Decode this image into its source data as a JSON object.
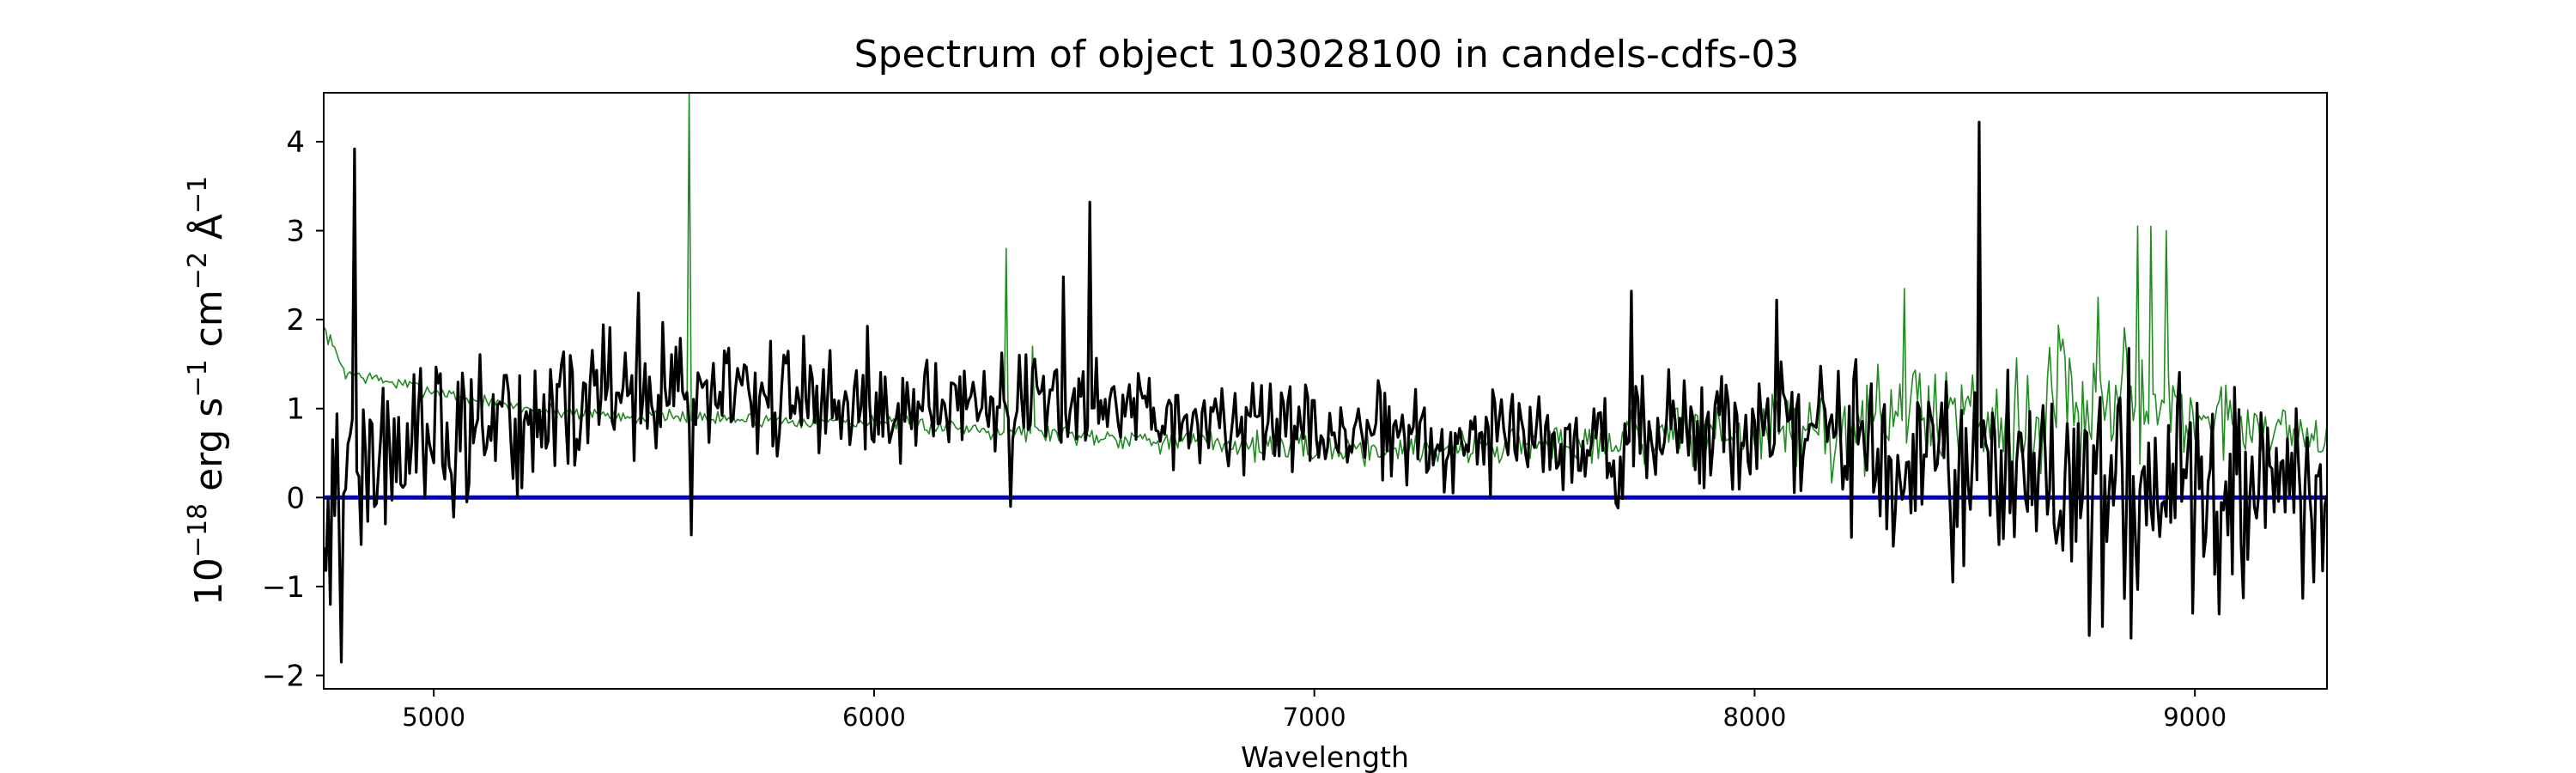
{
  "chart_data": {
    "type": "line",
    "title": "Spectrum of object 103028100 in candels-cdfs-03",
    "xlabel": "Wavelength",
    "ylabel_base": "10",
    "ylabel_exp": "−18",
    "ylabel_unit_1": " erg s",
    "ylabel_unit_1_exp": "−1",
    "ylabel_unit_2": " cm",
    "ylabel_unit_2_exp": "−2",
    "ylabel_unit_3": " Å",
    "ylabel_unit_3_exp": "−1",
    "xlim": [
      4750,
      9300
    ],
    "ylim": [
      -2.15,
      4.55
    ],
    "xticks": [
      5000,
      6000,
      7000,
      8000,
      9000
    ],
    "yticks": [
      -2,
      -1,
      0,
      1,
      2,
      3,
      4
    ],
    "ytick_labels": [
      "−2",
      "−1",
      "0",
      "1",
      "2",
      "3",
      "4"
    ],
    "grid": false,
    "colors": {
      "flux": "#000000",
      "error": "#228b22",
      "zero": "#0000cc"
    },
    "zero_line": 0,
    "flux_sample_step": 5,
    "flux_spikes": [
      {
        "x": 4820,
        "y": 3.92
      },
      {
        "x": 4790,
        "y": -1.85
      },
      {
        "x": 4765,
        "y": -1.2
      },
      {
        "x": 5465,
        "y": 2.3
      },
      {
        "x": 5585,
        "y": -0.42
      },
      {
        "x": 6310,
        "y": -0.1
      },
      {
        "x": 6430,
        "y": 2.48
      },
      {
        "x": 6490,
        "y": 3.32
      },
      {
        "x": 7720,
        "y": 2.32
      },
      {
        "x": 8050,
        "y": 2.22
      },
      {
        "x": 8510,
        "y": 4.22
      },
      {
        "x": 8450,
        "y": -0.95
      },
      {
        "x": 8760,
        "y": -1.55
      },
      {
        "x": 8790,
        "y": -1.45
      },
      {
        "x": 8855,
        "y": -1.58
      },
      {
        "x": 8995,
        "y": -1.3
      },
      {
        "x": 9270,
        "y": -0.95
      }
    ],
    "error_spikes": [
      {
        "x": 5580,
        "y": 4.55
      },
      {
        "x": 6300,
        "y": 2.8
      },
      {
        "x": 6360,
        "y": 1.7
      },
      {
        "x": 8340,
        "y": 2.35
      },
      {
        "x": 8870,
        "y": 3.05
      },
      {
        "x": 8900,
        "y": 3.05
      },
      {
        "x": 8935,
        "y": 3.0
      },
      {
        "x": 8780,
        "y": 2.25
      }
    ],
    "series": [
      {
        "role": "flux",
        "x_start": 4750,
        "x_step": 5,
        "baseline_points": [
          [
            4750,
            0.0
          ],
          [
            4850,
            0.4
          ],
          [
            5000,
            0.6
          ],
          [
            5200,
            0.8
          ],
          [
            5400,
            1.2
          ],
          [
            5600,
            1.15
          ],
          [
            5800,
            1.1
          ],
          [
            6000,
            1.0
          ],
          [
            6300,
            1.1
          ],
          [
            6600,
            0.95
          ],
          [
            7000,
            0.75
          ],
          [
            7400,
            0.65
          ],
          [
            7600,
            0.6
          ],
          [
            7900,
            0.75
          ],
          [
            8200,
            0.7
          ],
          [
            8400,
            0.35
          ],
          [
            8700,
            0.2
          ],
          [
            9000,
            0.15
          ],
          [
            9300,
            0.25
          ]
        ],
        "noise_points": [
          [
            4750,
            0.6
          ],
          [
            5000,
            0.55
          ],
          [
            5300,
            0.5
          ],
          [
            5600,
            0.45
          ],
          [
            6000,
            0.4
          ],
          [
            6500,
            0.35
          ],
          [
            7000,
            0.32
          ],
          [
            7500,
            0.35
          ],
          [
            7800,
            0.45
          ],
          [
            8300,
            0.55
          ],
          [
            8700,
            0.75
          ],
          [
            9300,
            0.7
          ]
        ]
      },
      {
        "role": "error",
        "x_start": 4750,
        "x_step": 5,
        "baseline_points": [
          [
            4750,
            1.9
          ],
          [
            4800,
            1.4
          ],
          [
            5000,
            1.2
          ],
          [
            5200,
            1.0
          ],
          [
            5500,
            0.9
          ],
          [
            6000,
            0.85
          ],
          [
            6500,
            0.7
          ],
          [
            7000,
            0.55
          ],
          [
            7200,
            0.55
          ],
          [
            7500,
            0.6
          ],
          [
            7800,
            0.7
          ],
          [
            8000,
            0.75
          ],
          [
            8200,
            0.75
          ],
          [
            8300,
            0.9
          ],
          [
            8500,
            1.0
          ],
          [
            8650,
            0.85
          ],
          [
            8700,
            1.45
          ],
          [
            8750,
            0.8
          ],
          [
            8850,
            1.2
          ],
          [
            9000,
            0.9
          ],
          [
            9300,
            0.7
          ]
        ],
        "noise_points": [
          [
            4750,
            0.05
          ],
          [
            6000,
            0.05
          ],
          [
            7300,
            0.12
          ],
          [
            7800,
            0.2
          ],
          [
            8300,
            0.35
          ],
          [
            8700,
            0.45
          ],
          [
            9000,
            0.3
          ],
          [
            9300,
            0.15
          ]
        ]
      }
    ]
  }
}
